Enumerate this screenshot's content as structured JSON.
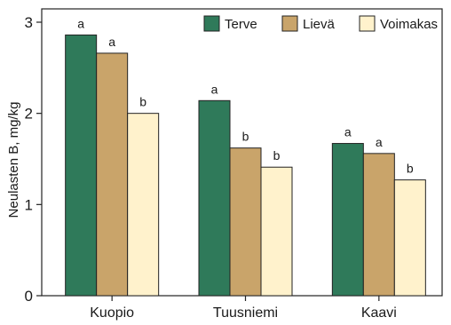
{
  "chart_data": {
    "type": "bar",
    "ylabel": "Neulasten B, mg/kg",
    "ylim": [
      0,
      3
    ],
    "yticks": [
      0,
      1,
      2,
      3
    ],
    "categories": [
      "Kuopio",
      "Tuusniemi",
      "Kaavi"
    ],
    "series": [
      {
        "name": "Terve",
        "color": "#2f7a5a",
        "values": [
          2.86,
          2.14,
          1.67
        ],
        "labels": [
          "a",
          "a",
          "a"
        ]
      },
      {
        "name": "Lievä",
        "color": "#c9a46a",
        "values": [
          2.66,
          1.62,
          1.56
        ],
        "labels": [
          "a",
          "b",
          "a"
        ]
      },
      {
        "name": "Voimakas",
        "color": "#fff2cc",
        "values": [
          2.0,
          1.41,
          1.27
        ],
        "labels": [
          "b",
          "b",
          "b"
        ]
      }
    ],
    "legend_position": "top-right",
    "grid": false
  }
}
